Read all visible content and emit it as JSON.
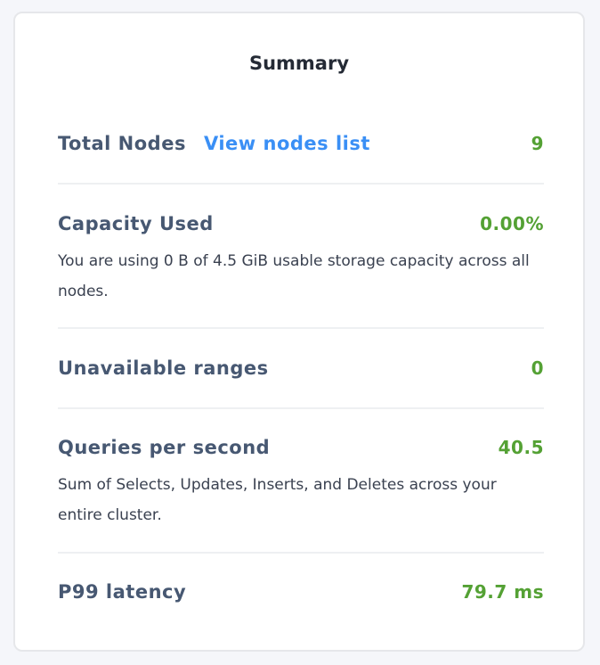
{
  "summary": {
    "title": "Summary",
    "total_nodes": {
      "label": "Total Nodes",
      "link": "View nodes list",
      "value": "9"
    },
    "capacity_used": {
      "label": "Capacity Used",
      "value": "0.00%",
      "description": "You are using 0 B of 4.5 GiB usable storage capacity across all nodes."
    },
    "unavailable_ranges": {
      "label": "Unavailable ranges",
      "value": "0"
    },
    "qps": {
      "label": "Queries per second",
      "value": "40.5",
      "description": "Sum of Selects, Updates, Inserts, and Deletes across your entire cluster."
    },
    "p99": {
      "label": "P99 latency",
      "value": "79.7 ms"
    }
  },
  "colors": {
    "value": "#54a134",
    "link": "#3a8ff5",
    "label": "#475872"
  }
}
